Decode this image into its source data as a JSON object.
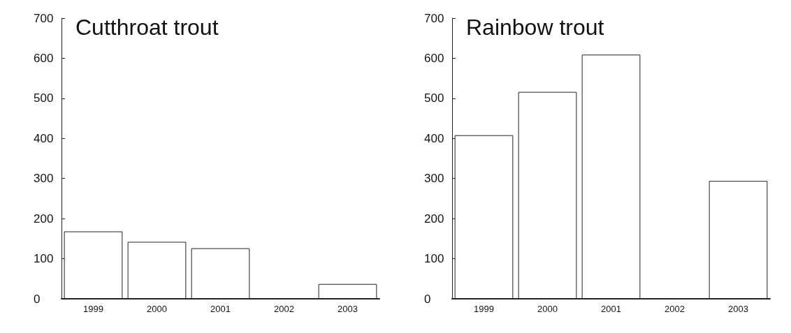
{
  "chart_data": [
    {
      "type": "bar",
      "title": "Cutthroat trout",
      "categories": [
        "1999",
        "2000",
        "2001",
        "2002",
        "2003"
      ],
      "values": [
        168,
        142,
        126,
        0,
        37
      ],
      "color": "#ffffff",
      "ylim": [
        0,
        700
      ],
      "yticks": [
        0,
        100,
        200,
        300,
        400,
        500,
        600,
        700
      ],
      "grid": false
    },
    {
      "type": "bar",
      "title": "Rainbow trout",
      "categories": [
        "1999",
        "2000",
        "2001",
        "2002",
        "2003"
      ],
      "values": [
        408,
        516,
        609,
        0,
        294
      ],
      "color": "#ffffff",
      "ylim": [
        0,
        700
      ],
      "yticks": [
        0,
        100,
        200,
        300,
        400,
        500,
        600,
        700
      ],
      "grid": false
    }
  ]
}
